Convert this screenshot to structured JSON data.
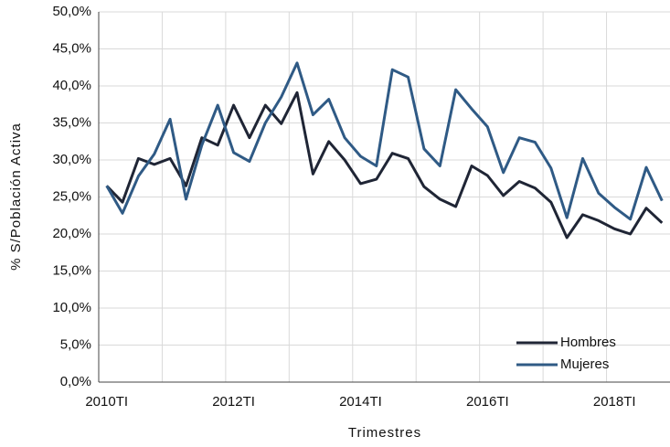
{
  "chart_data": {
    "type": "line",
    "x_label": "Trimestres",
    "y_label": "% S/Población Activa",
    "categories": [
      "2010TI",
      null,
      null,
      null,
      null,
      null,
      null,
      null,
      "2012TI",
      null,
      null,
      null,
      null,
      null,
      null,
      null,
      "2014TI",
      null,
      null,
      null,
      null,
      null,
      null,
      null,
      "2016TI",
      null,
      null,
      null,
      null,
      null,
      null,
      null,
      "2018TI",
      null,
      null,
      null
    ],
    "series": [
      {
        "name": "Hombres",
        "color": "#1f2535",
        "values": [
          26.5,
          24.3,
          30.2,
          29.4,
          30.2,
          26.5,
          33.0,
          32.0,
          37.4,
          33.0,
          37.4,
          34.9,
          39.1,
          28.1,
          32.5,
          30.0,
          26.8,
          27.4,
          30.9,
          30.2,
          26.4,
          24.7,
          23.7,
          29.2,
          27.9,
          25.2,
          27.1,
          26.2,
          24.3,
          19.5,
          22.6,
          21.8,
          20.7,
          20.0,
          23.5,
          21.5
        ]
      },
      {
        "name": "Mujeres",
        "color": "#2f5a85",
        "values": [
          26.5,
          22.8,
          27.8,
          30.8,
          35.5,
          24.7,
          32.0,
          37.4,
          31.0,
          29.8,
          35.0,
          38.5,
          43.1,
          36.1,
          38.2,
          33.0,
          30.5,
          29.2,
          42.2,
          41.2,
          31.5,
          29.2,
          39.5,
          36.9,
          34.5,
          28.3,
          33.0,
          32.4,
          28.9,
          22.2,
          30.2,
          25.5,
          23.6,
          22.0,
          29.0,
          24.5
        ]
      }
    ],
    "ylim": [
      0,
      50
    ],
    "yticks": [
      {
        "value": 0,
        "label": "0,0%"
      },
      {
        "value": 5,
        "label": "5,0%"
      },
      {
        "value": 10,
        "label": "10,0%"
      },
      {
        "value": 15,
        "label": "15,0%"
      },
      {
        "value": 20,
        "label": "20,0%"
      },
      {
        "value": 25,
        "label": "25,0%"
      },
      {
        "value": 30,
        "label": "30,0%"
      },
      {
        "value": 35,
        "label": "35,0%"
      },
      {
        "value": 40,
        "label": "40,0%"
      },
      {
        "value": 45,
        "label": "45,0%"
      },
      {
        "value": 50,
        "label": "50,0%"
      }
    ],
    "grid": true,
    "legend": "lower right"
  }
}
